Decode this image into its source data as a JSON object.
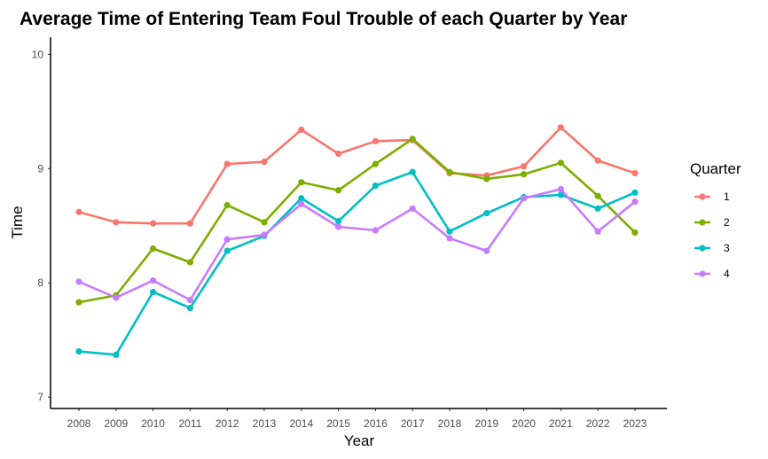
{
  "chart_data": {
    "type": "line",
    "title": "Average Time of Entering Team Foul Trouble of each Quarter by Year",
    "xlabel": "Year",
    "ylabel": "Time",
    "x": [
      2008,
      2009,
      2010,
      2011,
      2012,
      2013,
      2014,
      2015,
      2016,
      2017,
      2018,
      2019,
      2020,
      2021,
      2022,
      2023
    ],
    "x_tick_labels": [
      "2008",
      "2009",
      "2010",
      "2011",
      "2012",
      "2013",
      "2014",
      "2015",
      "2016",
      "2017",
      "2018",
      "2019",
      "2020",
      "2021",
      "2022",
      "2023"
    ],
    "ylim": [
      6.9,
      10.15
    ],
    "y_ticks": [
      7,
      8,
      9,
      10
    ],
    "y_tick_labels": [
      "7",
      "8",
      "9",
      "10"
    ],
    "grid": false,
    "legend": {
      "title": "Quarter",
      "position": "right"
    },
    "series": [
      {
        "name": "1",
        "color": "#F8766D",
        "values": [
          8.62,
          8.53,
          8.52,
          8.52,
          9.04,
          9.06,
          9.34,
          9.13,
          9.24,
          9.25,
          8.96,
          8.94,
          9.02,
          9.36,
          9.07,
          8.96
        ]
      },
      {
        "name": "2",
        "color": "#7CAE00",
        "values": [
          7.83,
          7.89,
          8.3,
          8.18,
          8.68,
          8.53,
          8.88,
          8.81,
          9.04,
          9.26,
          8.97,
          8.91,
          8.95,
          9.05,
          8.76,
          8.44
        ]
      },
      {
        "name": "3",
        "color": "#00BFC4",
        "values": [
          7.4,
          7.37,
          7.92,
          7.78,
          8.28,
          8.41,
          8.74,
          8.54,
          8.85,
          8.97,
          8.45,
          8.61,
          8.75,
          8.77,
          8.65,
          8.79
        ]
      },
      {
        "name": "4",
        "color": "#C77CFF",
        "values": [
          8.01,
          7.87,
          8.02,
          7.85,
          8.38,
          8.42,
          8.69,
          8.49,
          8.46,
          8.65,
          8.39,
          8.28,
          8.74,
          8.82,
          8.45,
          8.71
        ]
      }
    ]
  }
}
